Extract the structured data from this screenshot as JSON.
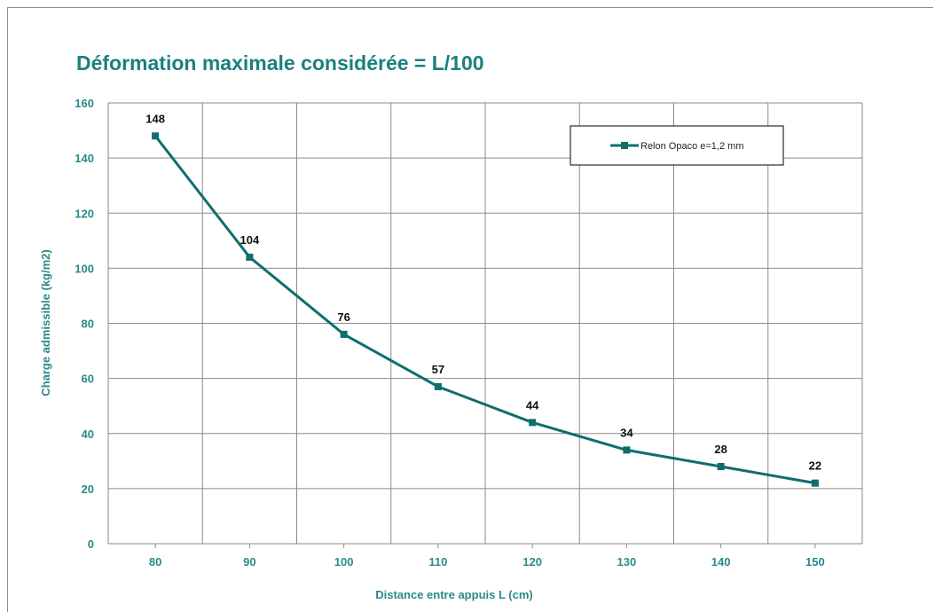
{
  "chart_data": {
    "type": "line",
    "title": "Déformation maximale considérée = L/100",
    "xlabel": "Distance entre appuis  L (cm)",
    "ylabel": "Charge admissible (kg/m2)",
    "categories": [
      "80",
      "90",
      "100",
      "110",
      "120",
      "130",
      "140",
      "150"
    ],
    "series": [
      {
        "name": "Relon Opaco e=1,2 mm",
        "values": [
          148,
          104,
          76,
          57,
          44,
          34,
          28,
          22
        ],
        "data_labels": [
          "148",
          "104",
          "76",
          "57",
          "44",
          "34",
          "28",
          "22"
        ],
        "color": "#0f6e6e",
        "marker": "square"
      }
    ],
    "ylim": [
      0,
      160
    ],
    "yticks": [
      "0",
      "20",
      "40",
      "60",
      "80",
      "100",
      "120",
      "140",
      "160"
    ],
    "grid": true,
    "legend_position": "top-right"
  }
}
